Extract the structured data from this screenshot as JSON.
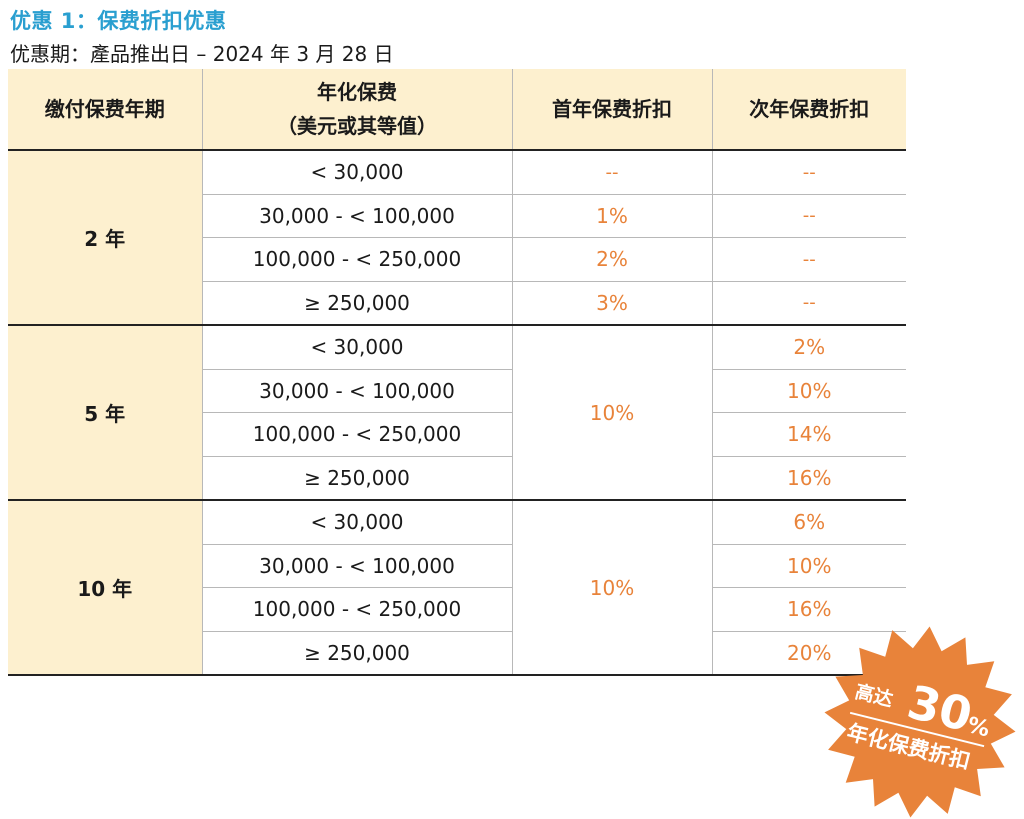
{
  "header": {
    "title": "优惠 1：保费折扣优惠",
    "subtitle": "优惠期：產品推出日 – 2024 年 3 月 28 日"
  },
  "table": {
    "columns": [
      "缴付保费年期",
      "年化保费",
      "（美元或其等值）",
      "首年保费折扣",
      "次年保费折扣"
    ],
    "groups": [
      {
        "term": "2 年",
        "rows": [
          {
            "premium": "< 30,000",
            "first_year": "--",
            "second_year": "--"
          },
          {
            "premium": "30,000 - < 100,000",
            "first_year": "1%",
            "second_year": "--"
          },
          {
            "premium": "100,000 - < 250,000",
            "first_year": "2%",
            "second_year": "--"
          },
          {
            "premium": "≥ 250,000",
            "first_year": "3%",
            "second_year": "--"
          }
        ]
      },
      {
        "term": "5 年",
        "first_year": "10%",
        "rows": [
          {
            "premium": "< 30,000",
            "second_year": "2%"
          },
          {
            "premium": "30,000 - < 100,000",
            "second_year": "10%"
          },
          {
            "premium": "100,000 - < 250,000",
            "second_year": "14%"
          },
          {
            "premium": "≥ 250,000",
            "second_year": "16%"
          }
        ]
      },
      {
        "term": "10 年",
        "first_year": "10%",
        "rows": [
          {
            "premium": "< 30,000",
            "second_year": "6%"
          },
          {
            "premium": "30,000 - < 100,000",
            "second_year": "10%"
          },
          {
            "premium": "100,000 - < 250,000",
            "second_year": "16%"
          },
          {
            "premium": "≥ 250,000",
            "second_year": "20%"
          }
        ]
      }
    ]
  },
  "badge": {
    "prefix": "高达",
    "value": "30",
    "unit": "%",
    "caption": "年化保费折扣",
    "color": "#e8833a"
  },
  "colors": {
    "title": "#2a9fd0",
    "header_bg": "#fdf0cf",
    "accent": "#e8833a"
  }
}
